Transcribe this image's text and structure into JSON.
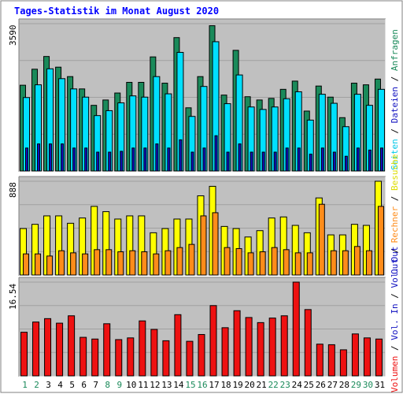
{
  "title": "Tages-Statistik im Monat August 2020",
  "colors": {
    "anfragen": "#1a8a5a",
    "dateien": "#00e0ff",
    "seiten": "#1010c0",
    "besuche": "#ffff00",
    "rechner": "#ff8c1a",
    "volumen": "#ee1111",
    "bg": "#c0c0c0"
  },
  "chart_data": [
    {
      "type": "bar",
      "panel": "top",
      "ymax_label": "3590",
      "ylim": [
        0,
        3590
      ],
      "categories": [
        "1",
        "2",
        "3",
        "4",
        "5",
        "6",
        "7",
        "8",
        "9",
        "10",
        "11",
        "12",
        "13",
        "14",
        "15",
        "16",
        "17",
        "18",
        "19",
        "20",
        "21",
        "22",
        "23",
        "24",
        "25",
        "26",
        "27",
        "28",
        "29",
        "30",
        "31"
      ],
      "series": [
        {
          "name": "Anfragen",
          "values": [
            2090,
            2480,
            2790,
            2530,
            2300,
            2000,
            1600,
            1730,
            1900,
            2160,
            2160,
            2780,
            2140,
            3250,
            1540,
            2300,
            3540,
            1850,
            2940,
            1810,
            1730,
            1770,
            1990,
            2190,
            1460,
            2070,
            1800,
            1300,
            2140,
            2100,
            2240
          ]
        },
        {
          "name": "Dateien",
          "values": [
            1790,
            2100,
            2490,
            2250,
            2000,
            1800,
            1350,
            1470,
            1660,
            1830,
            1800,
            2300,
            1880,
            2890,
            1330,
            2060,
            3150,
            1640,
            2340,
            1560,
            1500,
            1560,
            1760,
            1930,
            1240,
            1870,
            1650,
            1080,
            1870,
            1600,
            1990
          ]
        },
        {
          "name": "Seiten",
          "values": [
            560,
            660,
            660,
            660,
            560,
            560,
            460,
            460,
            480,
            560,
            560,
            660,
            560,
            760,
            460,
            560,
            860,
            460,
            660,
            460,
            460,
            460,
            560,
            560,
            410,
            560,
            460,
            360,
            560,
            510,
            560
          ]
        }
      ],
      "legend": [
        "Anfragen",
        "Dateien",
        "Seiten"
      ]
    },
    {
      "type": "bar",
      "panel": "middle",
      "ymax_label": "888",
      "ylim": [
        0,
        888
      ],
      "categories": [
        "1",
        "2",
        "3",
        "4",
        "5",
        "6",
        "7",
        "8",
        "9",
        "10",
        "11",
        "12",
        "13",
        "14",
        "15",
        "16",
        "17",
        "18",
        "19",
        "20",
        "21",
        "22",
        "23",
        "24",
        "25",
        "26",
        "27",
        "28",
        "29",
        "30",
        "31"
      ],
      "series": [
        {
          "name": "Besuche",
          "values": [
            440,
            480,
            560,
            560,
            490,
            540,
            650,
            600,
            530,
            560,
            560,
            400,
            440,
            530,
            530,
            750,
            840,
            460,
            440,
            360,
            420,
            540,
            550,
            470,
            400,
            730,
            380,
            380,
            480,
            470,
            890
          ]
        },
        {
          "name": "Rechner",
          "values": [
            200,
            200,
            180,
            230,
            210,
            200,
            240,
            240,
            220,
            230,
            220,
            200,
            230,
            260,
            290,
            560,
            590,
            260,
            250,
            210,
            220,
            260,
            240,
            210,
            210,
            670,
            230,
            230,
            270,
            230,
            650
          ]
        }
      ],
      "legend": [
        "Besuche",
        "Rechner"
      ]
    },
    {
      "type": "bar",
      "panel": "bottom",
      "ymax_label": "16.54",
      "ylim": [
        0,
        16.54
      ],
      "categories": [
        "1",
        "2",
        "3",
        "4",
        "5",
        "6",
        "7",
        "8",
        "9",
        "10",
        "11",
        "12",
        "13",
        "14",
        "15",
        "16",
        "17",
        "18",
        "19",
        "20",
        "21",
        "22",
        "23",
        "24",
        "25",
        "26",
        "27",
        "28",
        "29",
        "30",
        "31"
      ],
      "series": [
        {
          "name": "Volumen",
          "values": [
            7.7,
            9.5,
            10.1,
            9.3,
            10.6,
            6.8,
            6.5,
            9.2,
            6.4,
            6.7,
            9.7,
            8.2,
            6.2,
            10.8,
            6.1,
            7.3,
            12.4,
            8.5,
            11.5,
            10.3,
            9.4,
            10.2,
            10.6,
            16.54,
            11.7,
            5.6,
            5.5,
            4.6,
            7.4,
            6.7,
            6.5
          ]
        }
      ],
      "legend": [
        "Volumen"
      ]
    }
  ],
  "right_labels": {
    "top": [
      {
        "text": "Anfragen",
        "color": "#1a8a5a"
      },
      {
        "text": "Dateien",
        "color": "#00c8e8"
      },
      {
        "text": "Seiten",
        "color": "#00c8e8"
      }
    ],
    "middle": [
      {
        "text": "Besuche",
        "color": "#dddd00"
      },
      {
        "text": "Rechner",
        "color": "#ff8c1a"
      },
      {
        "text": "Out",
        "color": "#1010c0"
      }
    ],
    "bottom": [
      {
        "text": "Volumen",
        "color": "#ee1111"
      },
      {
        "text": "Vol. In",
        "color": "#1010c0"
      }
    ]
  },
  "separator": " / ",
  "vol_out_label": "Vol. Out",
  "weekend_days": [
    "1",
    "2",
    "8",
    "9",
    "15",
    "16",
    "22",
    "23",
    "29",
    "30"
  ],
  "day_label_colors": {
    "weekday": "#000000",
    "weekend": "#1a8a5a"
  }
}
